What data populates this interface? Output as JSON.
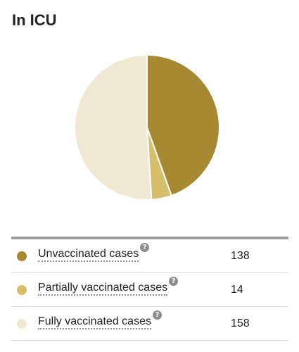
{
  "title": "In ICU",
  "chart_data": {
    "type": "pie",
    "title": "In ICU",
    "categories": [
      "Unvaccinated cases",
      "Partially vaccinated cases",
      "Fully vaccinated cases"
    ],
    "values": [
      138,
      14,
      158
    ],
    "colors": [
      "#a78932",
      "#d6bf6a",
      "#f1e8d3"
    ],
    "legend_placement": "bottom",
    "help_icon": "question-mark-icon"
  }
}
